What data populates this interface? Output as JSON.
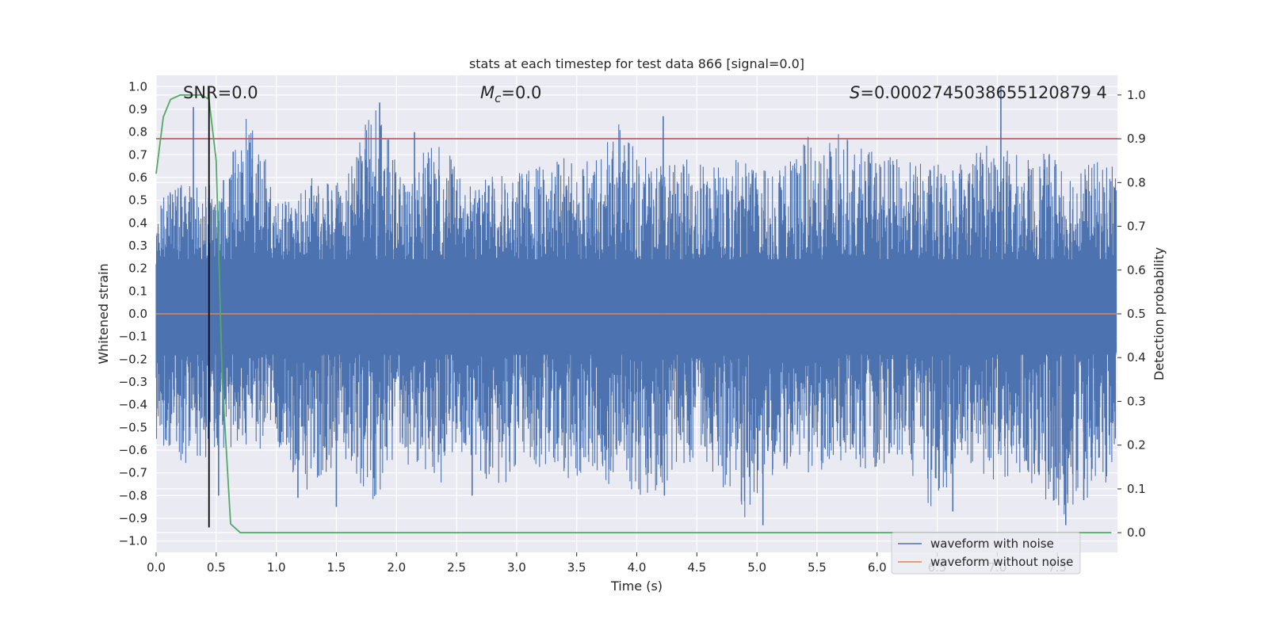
{
  "chart_data": {
    "type": "line",
    "title": "stats at each timestep for test data 866 [signal=0.0]",
    "xlabel": "Time (s)",
    "ylabel_left": "Whitened strain",
    "ylabel_right": "Detection probability",
    "xlim": [
      0.0,
      8.0
    ],
    "ylim_left": [
      -1.05,
      1.05
    ],
    "ylim_right": [
      -0.045,
      1.045
    ],
    "x_ticks": [
      0.0,
      0.5,
      1.0,
      1.5,
      2.0,
      2.5,
      3.0,
      3.5,
      4.0,
      4.5,
      5.0,
      5.5,
      6.0,
      6.5,
      7.0,
      7.5
    ],
    "x_tick_labels": [
      "0.0",
      "0.5",
      "1.0",
      "1.5",
      "2.0",
      "2.5",
      "3.0",
      "3.5",
      "4.0",
      "4.5",
      "5.0",
      "5.5",
      "6.0",
      "6.5",
      "7.0",
      "7.5"
    ],
    "y_ticks_left": [
      1.0,
      0.9,
      0.8,
      0.7,
      0.6,
      0.5,
      0.4,
      0.3,
      0.2,
      0.1,
      0.0,
      -0.1,
      -0.2,
      -0.3,
      -0.4,
      -0.5,
      -0.6,
      -0.7,
      -0.8,
      -0.9,
      -1.0
    ],
    "y_tick_labels_left": [
      "1.0",
      "0.9",
      "0.8",
      "0.7",
      "0.6",
      "0.5",
      "0.4",
      "0.3",
      "0.2",
      "0.1",
      "0.0",
      "−0.1",
      "−0.2",
      "−0.3",
      "−0.4",
      "−0.5",
      "−0.6",
      "−0.7",
      "−0.8",
      "−0.9",
      "−1.0"
    ],
    "y_ticks_right": [
      1.0,
      0.9,
      0.8,
      0.7,
      0.6,
      0.5,
      0.4,
      0.3,
      0.2,
      0.1,
      0.0
    ],
    "y_tick_labels_right": [
      "1.0",
      "0.9",
      "0.8",
      "0.7",
      "0.6",
      "0.5",
      "0.4",
      "0.3",
      "0.2",
      "0.1",
      "0.0"
    ],
    "annotations": {
      "snr": "SNR=0.0",
      "mc_symbol": "M",
      "mc_sub": "c",
      "mc_value": "=0.0",
      "s_symbol": "S",
      "s_value": "=0.0002745038655120879 4"
    },
    "series": [
      {
        "name": "waveform with noise",
        "axis": "left",
        "color": "#4c72b0",
        "description_sampled": true,
        "envelope_upper": [
          0.48,
          0.62,
          0.55,
          0.91,
          0.48,
          0.62,
          0.58,
          0.93,
          0.61,
          0.8,
          0.6,
          0.62,
          0.63,
          0.7,
          0.68,
          0.87,
          0.65,
          0.7,
          0.66,
          0.7,
          0.62,
          0.78,
          0.8,
          0.72,
          0.68,
          0.66,
          0.7,
          0.78,
          0.68,
          0.72,
          0.66,
          0.7
        ],
        "envelope_lower": [
          -0.55,
          -0.7,
          -0.62,
          -0.57,
          -0.65,
          -0.81,
          -0.62,
          -0.85,
          -0.65,
          -0.78,
          -0.6,
          -0.8,
          -0.64,
          -0.75,
          -0.72,
          -0.78,
          -0.82,
          -0.66,
          -0.7,
          -0.93,
          -0.68,
          -0.72,
          -0.65,
          -0.7,
          -0.62,
          -0.87,
          -0.66,
          -0.74,
          -0.7,
          -0.92,
          -0.82,
          -0.7
        ],
        "spikes": [
          [
            0.31,
            0.91
          ],
          [
            1.86,
            0.93
          ],
          [
            2.15,
            0.8
          ],
          [
            4.22,
            0.87
          ],
          [
            7.03,
            1.0
          ],
          [
            0.52,
            -0.8
          ],
          [
            1.18,
            -0.81
          ],
          [
            1.5,
            -0.85
          ],
          [
            2.63,
            -0.8
          ],
          [
            4.23,
            -0.8
          ],
          [
            5.05,
            -0.93
          ],
          [
            6.63,
            -0.87
          ],
          [
            7.57,
            -0.93
          ],
          [
            7.72,
            -0.82
          ]
        ]
      },
      {
        "name": "waveform without noise",
        "axis": "left",
        "color": "#dd8452",
        "x": [
          0.0,
          8.0
        ],
        "y": [
          0.0,
          0.0
        ]
      },
      {
        "name": "detection probability",
        "axis": "right",
        "color": "#55a868",
        "x": [
          0.0,
          0.06,
          0.12,
          0.2,
          0.3,
          0.38,
          0.44,
          0.5,
          0.55,
          0.62,
          0.7,
          0.8,
          1.0,
          2.0,
          4.0,
          6.0,
          7.95
        ],
        "y": [
          0.82,
          0.95,
          0.99,
          1.0,
          1.0,
          1.0,
          0.99,
          0.85,
          0.35,
          0.02,
          0.0,
          0.0,
          0.0,
          0.0,
          0.0,
          0.0,
          0.0
        ]
      }
    ],
    "threshold_line": {
      "axis": "right",
      "value": 0.9,
      "color": "#c44e52"
    },
    "marker_line": {
      "x": 0.44,
      "y_from": -0.94,
      "y_to": 1.0,
      "color": "#000000"
    },
    "legend": {
      "placement": "lower-right",
      "entries": [
        {
          "label": "waveform with noise",
          "color": "#4c72b0"
        },
        {
          "label": "waveform without noise",
          "color": "#dd8452"
        }
      ]
    },
    "grid": true,
    "style": {
      "background": "#eaeaf2",
      "grid_color": "#ffffff"
    }
  }
}
